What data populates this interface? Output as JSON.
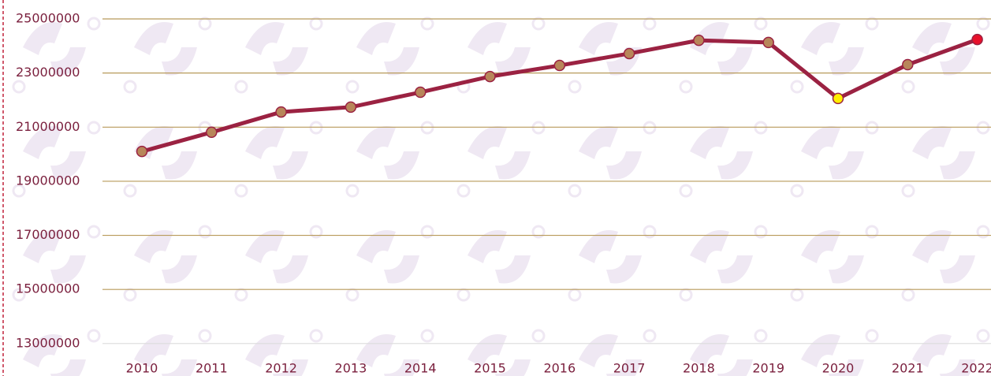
{
  "chart_data": {
    "type": "line",
    "categories": [
      "2010",
      "2011",
      "2012",
      "2013",
      "2014",
      "2015",
      "2016",
      "2017",
      "2018",
      "2019",
      "2020",
      "2021",
      "2022"
    ],
    "series": [
      {
        "color": "#9b2242",
        "values": [
          20100000,
          20810000,
          21560000,
          21740000,
          22290000,
          22870000,
          23280000,
          23720000,
          24210000,
          24130000,
          22060000,
          23310000,
          24240000
        ],
        "point_colors": [
          "#b8865a",
          "#b8865a",
          "#b8865a",
          "#b8865a",
          "#b8865a",
          "#b8865a",
          "#b8865a",
          "#b8865a",
          "#b8865a",
          "#b8865a",
          "#ffee00",
          "#b8865a",
          "#e8102a"
        ]
      }
    ],
    "ylim": [
      11800000,
      25700000
    ],
    "yticks": [
      13000000,
      15000000,
      17000000,
      19000000,
      21000000,
      23000000,
      25000000
    ],
    "grid": true
  }
}
